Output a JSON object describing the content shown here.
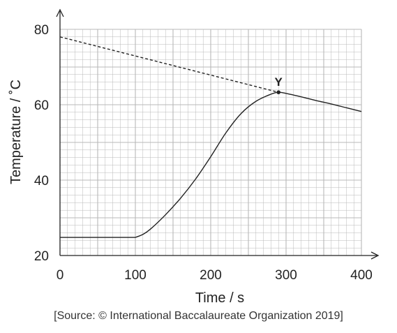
{
  "chart_data": {
    "type": "line",
    "xlabel": "Time / s",
    "ylabel": "Temperature / ˚C",
    "xlim": [
      0,
      400
    ],
    "ylim": [
      20,
      80
    ],
    "x_ticks": [
      "0",
      "100",
      "200",
      "300",
      "400"
    ],
    "y_ticks": [
      "20",
      "40",
      "60",
      "80"
    ],
    "grid": true,
    "series": [
      {
        "style": "solid",
        "points": [
          [
            0,
            24.8
          ],
          [
            100,
            24.8
          ],
          [
            110,
            25.6
          ],
          [
            120,
            27
          ],
          [
            140,
            30.8
          ],
          [
            160,
            35.2
          ],
          [
            180,
            40.3
          ],
          [
            200,
            46.2
          ],
          [
            220,
            52.5
          ],
          [
            240,
            57.6
          ],
          [
            260,
            60.9
          ],
          [
            280,
            62.8
          ],
          [
            290,
            63.3
          ],
          [
            300,
            63
          ],
          [
            320,
            62.1
          ],
          [
            340,
            61.1
          ],
          [
            360,
            60.2
          ],
          [
            380,
            59.2
          ],
          [
            400,
            58.2
          ]
        ]
      },
      {
        "style": "dashed",
        "points": [
          [
            0,
            78
          ],
          [
            290,
            63.3
          ]
        ]
      }
    ],
    "annotations": [
      {
        "label": "Y",
        "x": 290,
        "y": 63.3
      }
    ]
  },
  "source": "[Source: © International Baccalaureate Organization 2019]",
  "colors": {
    "line": "#222222",
    "grid": "#b8b8b8"
  }
}
